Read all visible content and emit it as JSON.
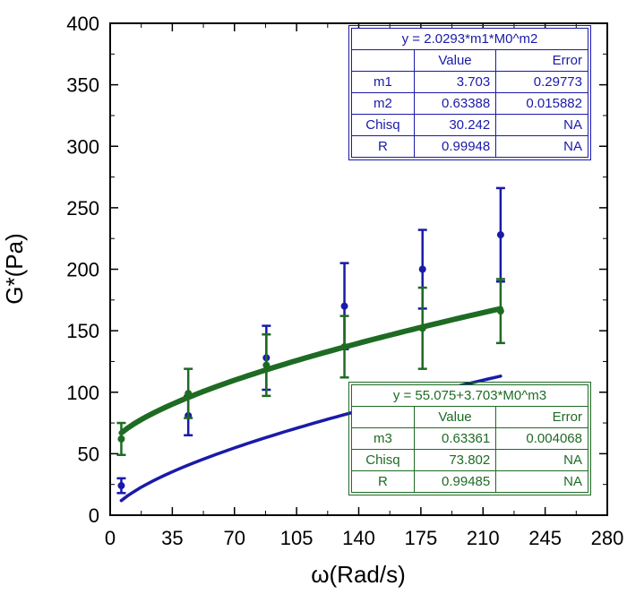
{
  "chart_data": {
    "type": "scatter",
    "xlabel": "ω(Rad/s)",
    "ylabel": "G*(Pa)",
    "xlim": [
      0,
      280
    ],
    "ylim": [
      0,
      400
    ],
    "x_ticks": [
      0,
      35,
      70,
      105,
      140,
      175,
      210,
      245,
      280
    ],
    "y_ticks": [
      0,
      50,
      100,
      150,
      200,
      250,
      300,
      350,
      400
    ],
    "grid": false,
    "series": [
      {
        "color": "#1a1aa8",
        "x": [
          6.28,
          43.98,
          87.96,
          131.95,
          175.93,
          219.91
        ],
        "y": [
          24,
          81,
          128,
          170,
          200,
          228
        ],
        "err": [
          6,
          16,
          26,
          35,
          32,
          38
        ],
        "fit": {
          "a": 0,
          "m1": 3.703,
          "m2": 0.63388
        }
      },
      {
        "color": "#1e6b23",
        "x": [
          6.28,
          43.98,
          87.96,
          131.95,
          175.93,
          219.91
        ],
        "y": [
          62,
          99,
          122,
          137,
          152,
          166
        ],
        "err": [
          13,
          20,
          25,
          25,
          33,
          26
        ],
        "fit": {
          "a": 55.075,
          "m1": 3.703,
          "m2": 0.63361
        }
      }
    ],
    "fit_tables": [
      {
        "equation": "y = 2.0293*m1*M0^m2",
        "header": [
          "",
          "Value",
          "Error"
        ],
        "rows": [
          [
            "m1",
            "3.703",
            "0.29773"
          ],
          [
            "m2",
            "0.63388",
            "0.015882"
          ],
          [
            "Chisq",
            "30.242",
            "NA"
          ],
          [
            "R",
            "0.99948",
            "NA"
          ]
        ]
      },
      {
        "equation": "y = 55.075+3.703*M0^m3",
        "header": [
          "",
          "Value",
          "Error"
        ],
        "rows": [
          [
            "m3",
            "0.63361",
            "0.004068"
          ],
          [
            "Chisq",
            "73.802",
            "NA"
          ],
          [
            "R",
            "0.99485",
            "NA"
          ]
        ]
      }
    ]
  }
}
